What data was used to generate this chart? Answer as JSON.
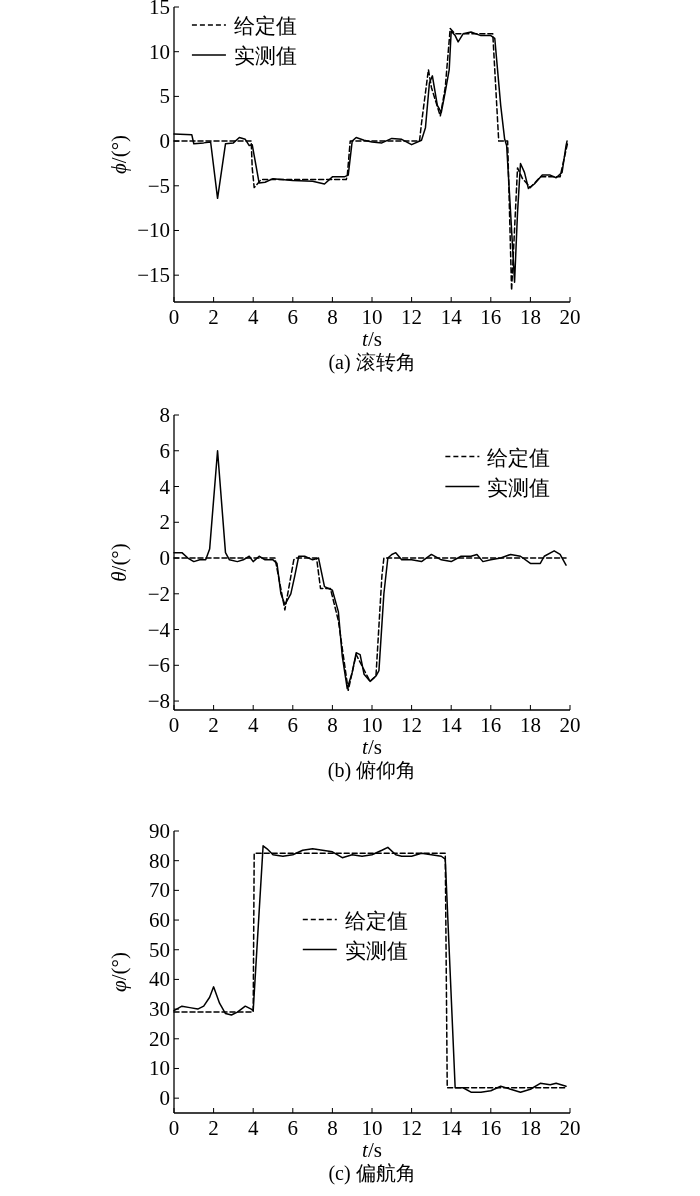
{
  "chart_data": [
    {
      "type": "line",
      "title": "(a) 滚转角",
      "xlabel": "*t*/s",
      "ylabel": "*ϕ*/(°)",
      "xlim": [
        0,
        20
      ],
      "xticks": [
        0,
        2,
        4,
        6,
        8,
        10,
        12,
        14,
        16,
        18,
        20
      ],
      "ylim": [
        -18,
        15
      ],
      "yticks": [
        -15,
        -10,
        -5,
        0,
        5,
        10,
        15
      ],
      "legend": "top left",
      "grid": false,
      "series": [
        {
          "name": "给定值",
          "color": "#000000",
          "line_style": "dashed",
          "x": [
            0,
            3.9,
            3.95,
            4.05,
            4.4,
            8.7,
            8.75,
            8.9,
            12.4,
            12.5,
            12.85,
            13.0,
            13.45,
            13.7,
            13.95,
            14.2,
            16.1,
            16.4,
            16.85,
            17.05,
            17.35,
            17.6,
            18.0,
            18.5,
            19.0,
            19.5,
            19.9
          ],
          "values": [
            0,
            0,
            -3,
            -5.2,
            -4.3,
            -4.3,
            -3.9,
            0,
            0,
            2,
            8,
            6,
            2.8,
            6,
            12.6,
            12,
            12,
            0,
            0,
            -16.7,
            -3,
            -4.2,
            -5.2,
            -4,
            -4,
            -4,
            0
          ]
        },
        {
          "name": "实测值",
          "color": "#000000",
          "line_style": "solid",
          "x": [
            0,
            0.9,
            1.0,
            1.5,
            1.85,
            2.2,
            2.6,
            3.0,
            3.3,
            3.6,
            3.8,
            3.95,
            4.3,
            4.6,
            5,
            6,
            7,
            7.6,
            8.0,
            8.6,
            8.8,
            9.0,
            9.2,
            9.6,
            10,
            10.5,
            11,
            11.5,
            12,
            12.5,
            12.7,
            12.9,
            13.05,
            13.3,
            13.5,
            13.7,
            13.9,
            14.0,
            14.2,
            14.35,
            14.6,
            15,
            15.5,
            16,
            16.2,
            16.5,
            16.7,
            16.8,
            17.0,
            17.2,
            17.35,
            17.5,
            17.7,
            17.9,
            18.2,
            18.6,
            19,
            19.3,
            19.6,
            19.8,
            19.85
          ],
          "values": [
            0.8,
            0.7,
            -0.3,
            -0.2,
            -0.1,
            -6.4,
            -0.3,
            -0.2,
            0.4,
            0.2,
            -0.5,
            -0.4,
            -4.7,
            -4.6,
            -4.2,
            -4.4,
            -4.5,
            -4.8,
            -4.0,
            -4.0,
            -3.8,
            0,
            0.4,
            0.1,
            -0.1,
            -0.2,
            0.3,
            0.2,
            -0.4,
            0.1,
            1.5,
            6.5,
            7.3,
            4.0,
            3.2,
            5.5,
            8.0,
            12.3,
            11.8,
            11.1,
            12.0,
            12.2,
            11.8,
            11.8,
            11.5,
            4,
            0.2,
            -0.5,
            -8,
            -15.8,
            -8,
            -2.5,
            -3.5,
            -5.3,
            -4.8,
            -3.8,
            -3.8,
            -4.1,
            -3.5,
            -0.5,
            0
          ]
        }
      ]
    },
    {
      "type": "line",
      "title": "(b) 俯仰角",
      "xlabel": "*t*/s",
      "ylabel": "*θ*/(°)",
      "xlim": [
        0,
        20
      ],
      "xticks": [
        0,
        2,
        4,
        6,
        8,
        10,
        12,
        14,
        16,
        18,
        20
      ],
      "ylim": [
        -8.5,
        8
      ],
      "yticks": [
        -8,
        -6,
        -4,
        -2,
        0,
        2,
        4,
        6,
        8
      ],
      "legend": "top right",
      "grid": false,
      "series": [
        {
          "name": "给定值",
          "color": "#000000",
          "line_style": "dashed",
          "x": [
            0,
            5.1,
            5.6,
            6.05,
            6.15,
            7.2,
            7.4,
            7.9,
            8.3,
            8.8,
            9.2,
            9.9,
            10.2,
            10.5,
            10.6,
            19.8
          ],
          "values": [
            0,
            0,
            -2.9,
            -0.1,
            0,
            0,
            -1.7,
            -1.7,
            -3.5,
            -7.4,
            -5.4,
            -6.9,
            -6.6,
            -1,
            0,
            0
          ]
        },
        {
          "name": "实测值",
          "color": "#000000",
          "line_style": "solid",
          "x": [
            0,
            0.4,
            0.7,
            1,
            1.3,
            1.6,
            1.8,
            2.2,
            2.6,
            2.8,
            3.2,
            3.5,
            3.8,
            4.0,
            4.3,
            4.6,
            5.0,
            5.2,
            5.4,
            5.6,
            5.9,
            6.1,
            6.3,
            6.6,
            7,
            7.3,
            7.6,
            8.0,
            8.3,
            8.5,
            8.75,
            9.0,
            9.2,
            9.4,
            9.6,
            9.9,
            10.2,
            10.35,
            10.6,
            10.8,
            11.0,
            11.2,
            11.5,
            12,
            12.5,
            13,
            13.5,
            14,
            14.5,
            15,
            15.3,
            15.6,
            16,
            16.5,
            17,
            17.5,
            18,
            18.5,
            18.7,
            19.2,
            19.5,
            19.8
          ],
          "values": [
            0.3,
            0.3,
            0,
            -0.2,
            -0.1,
            -0.1,
            0.5,
            6.0,
            0.3,
            -0.1,
            -0.2,
            -0.1,
            0.1,
            -0.2,
            0.1,
            -0.1,
            -0.1,
            -0.3,
            -2.0,
            -2.6,
            -2.0,
            -1.0,
            0.1,
            0.1,
            -0.1,
            0,
            -1.6,
            -1.8,
            -3,
            -5.5,
            -7.3,
            -6.4,
            -5.3,
            -5.4,
            -6.5,
            -6.9,
            -6.6,
            -6.3,
            -2,
            0,
            0.2,
            0.3,
            -0.1,
            -0.1,
            -0.2,
            0.2,
            -0.1,
            -0.2,
            0.1,
            0.1,
            0.2,
            -0.2,
            -0.1,
            0,
            0.2,
            0.1,
            -0.3,
            -0.3,
            0.1,
            0.4,
            0.2,
            -0.4
          ]
        }
      ]
    },
    {
      "type": "line",
      "title": "(c) 偏航角",
      "xlabel": "*t*/s",
      "ylabel": "*φ*/(°)",
      "xlim": [
        0,
        20
      ],
      "xticks": [
        0,
        2,
        4,
        6,
        8,
        10,
        12,
        14,
        16,
        18,
        20
      ],
      "ylim": [
        -5,
        90
      ],
      "yticks": [
        0,
        10,
        20,
        30,
        40,
        50,
        60,
        70,
        80,
        90
      ],
      "legend": "top",
      "grid": false,
      "series": [
        {
          "name": "给定值",
          "color": "#000000",
          "line_style": "dashed",
          "x": [
            0,
            4.0,
            4.05,
            13.7,
            13.8,
            19.8
          ],
          "values": [
            29,
            29,
            82.5,
            82.5,
            3.5,
            3.5
          ]
        },
        {
          "name": "实测值",
          "color": "#000000",
          "line_style": "solid",
          "x": [
            0,
            0.4,
            0.8,
            1.2,
            1.5,
            1.8,
            2.0,
            2.3,
            2.6,
            2.9,
            3.2,
            3.6,
            3.9,
            4.0,
            4.5,
            4.7,
            5.0,
            5.5,
            6.0,
            6.5,
            7,
            7.5,
            8,
            8.5,
            9,
            9.5,
            10,
            10.5,
            10.8,
            11.2,
            11.5,
            12,
            12.5,
            13,
            13.5,
            13.7,
            14.2,
            14.6,
            15,
            15.5,
            16,
            16.5,
            17,
            17.5,
            18,
            18.5,
            19,
            19.3,
            19.8
          ],
          "values": [
            29.5,
            31,
            30.5,
            30,
            31,
            34,
            37.5,
            32,
            28.5,
            28,
            29,
            31,
            30,
            29.5,
            85,
            84,
            82,
            81.5,
            82,
            83.5,
            84,
            83.5,
            83,
            81,
            82,
            81.5,
            82,
            83.5,
            84.5,
            82,
            81.5,
            81.5,
            82.5,
            82,
            81.5,
            80.5,
            3.5,
            3.5,
            2,
            2,
            2.5,
            4,
            3,
            2,
            3,
            5,
            4.5,
            5,
            4
          ]
        }
      ]
    }
  ]
}
